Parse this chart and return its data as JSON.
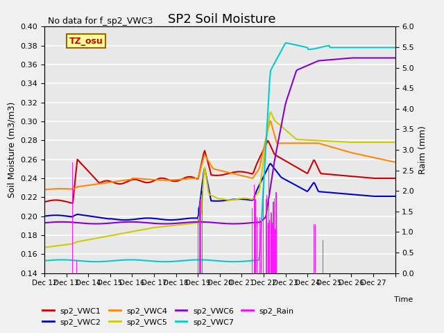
{
  "title": "SP2 Soil Moisture",
  "top_left_text": "No data for f_sp2_VWC3",
  "ylabel_left": "Soil Moisture (m3/m3)",
  "ylabel_right": "Raim (mm)",
  "xlabel": "Time",
  "ylim_left": [
    0.14,
    0.4
  ],
  "ylim_right": [
    0.0,
    6.0
  ],
  "xtick_positions": [
    0,
    1,
    2,
    3,
    4,
    5,
    6,
    7,
    8,
    9,
    10,
    11,
    12,
    13,
    14,
    15,
    16
  ],
  "xtick_labels": [
    "Dec 12",
    "Dec 13",
    "Dec 14",
    "Dec 15",
    "Dec 16",
    "Dec 17",
    "Dec 18",
    "Dec 19",
    "Dec 20",
    "Dec 21",
    "Dec 22",
    "Dec 23",
    "Dec 24",
    "Dec 25",
    "Dec 26",
    "Dec 27",
    ""
  ],
  "colors": {
    "sp2_VWC1": "#cc0000",
    "sp2_VWC2": "#0000cc",
    "sp2_VWC4": "#ff8800",
    "sp2_VWC5": "#cccc00",
    "sp2_VWC6": "#8800cc",
    "sp2_VWC7": "#00cccc",
    "sp2_Rain": "#ff00ff"
  },
  "tz_osu_box": {
    "text": "TZ_osu",
    "bg": "#ffff99",
    "border": "#996600"
  },
  "background_color": "#e8e8e8",
  "grid_color": "#ffffff",
  "n_days": 16
}
